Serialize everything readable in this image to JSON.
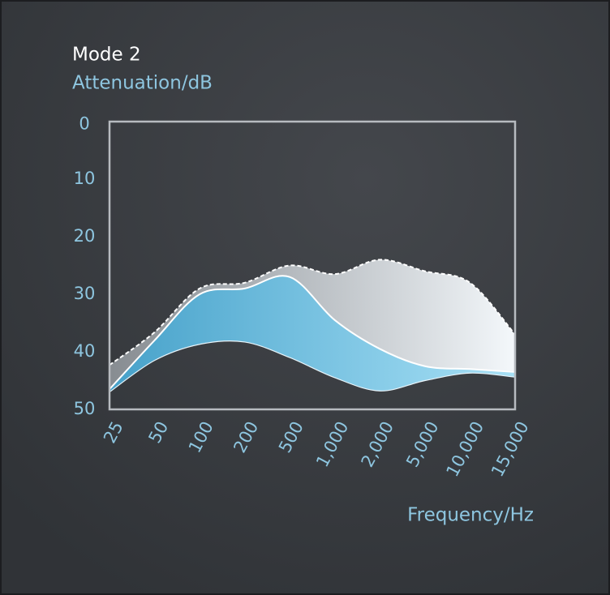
{
  "chart_data": {
    "type": "band-area",
    "title": "Mode 2",
    "ylabel": "Attenuation/dB",
    "xlabel": "Frequency/Hz",
    "categories": [
      "25",
      "50",
      "100",
      "200",
      "500",
      "1,000",
      "2,000",
      "5,000",
      "10,000",
      "15,000"
    ],
    "ylim": [
      0,
      50
    ],
    "yticks": [
      0,
      10,
      20,
      30,
      40,
      50
    ],
    "y_inverted": true,
    "series": [
      {
        "color": "#c9d0d6",
        "values": [
          42.3,
          36.6,
          29,
          28,
          25,
          26.5,
          24,
          26,
          28,
          37
        ],
        "base": [
          47,
          41.5,
          38.7,
          38.3,
          41,
          44.5,
          46.8,
          45,
          43.7,
          44.4
        ],
        "dashed_top": true
      },
      {
        "color": "#3fa3cf",
        "values": [
          46.5,
          38,
          30,
          29,
          27,
          34.5,
          39.5,
          42.5,
          43,
          43.5
        ],
        "base": [
          47,
          41.5,
          38.7,
          38.3,
          41,
          44.5,
          46.8,
          45,
          43.7,
          44.4
        ],
        "dashed_top": false
      }
    ]
  }
}
